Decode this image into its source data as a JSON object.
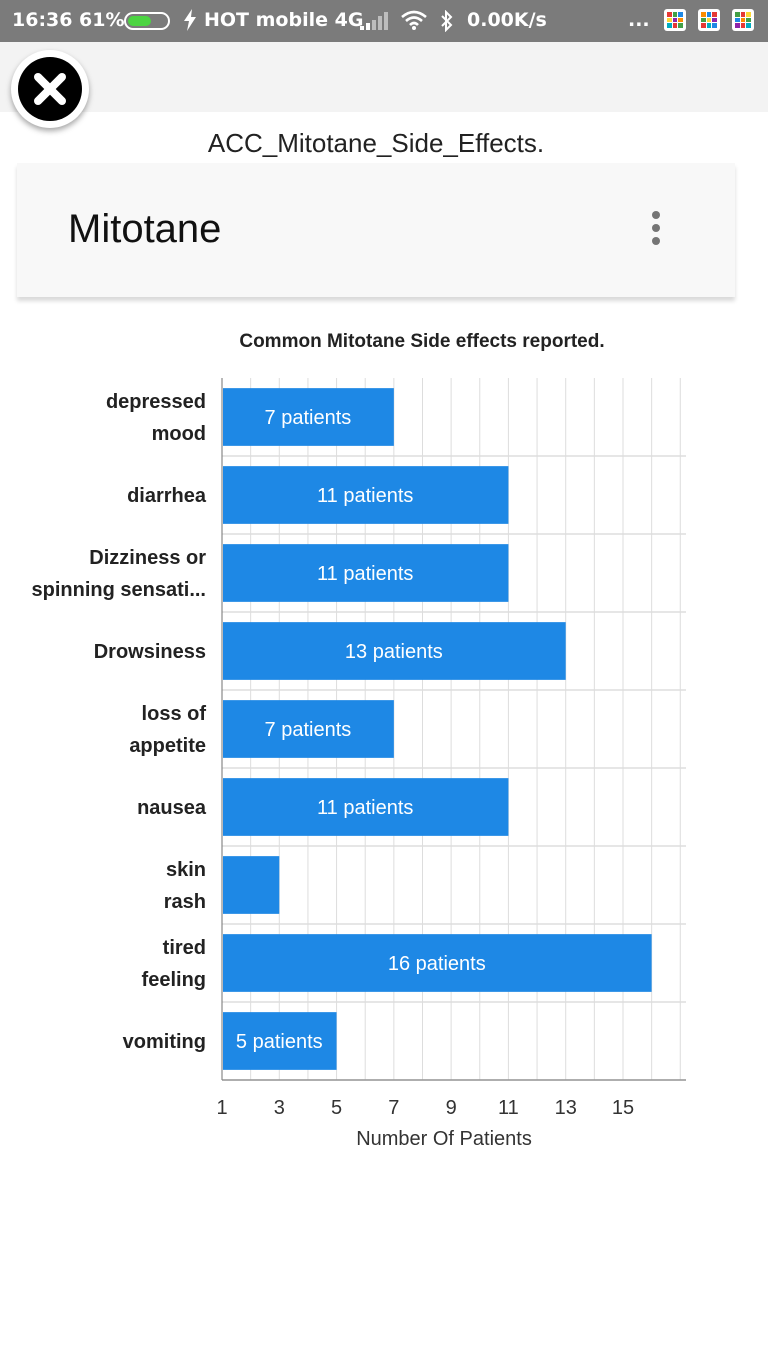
{
  "status_bar": {
    "time": "16:36",
    "battery_pct": "61%",
    "battery_level": 0.61,
    "carrier": "HOT mobile 4G",
    "net_speed": "0.00K/s",
    "overflow": "..."
  },
  "document": {
    "title": "ACC_Mitotane_Side_Effects."
  },
  "card": {
    "title": "Mitotane"
  },
  "icons": {
    "close": "close-icon",
    "more": "more-vert-icon",
    "charging": "bolt-icon",
    "signal": "signal-icon",
    "wifi": "wifi-icon",
    "bluetooth": "bluetooth-icon"
  },
  "colors": {
    "bar": "#1e88e5",
    "bar_label": "#ffffff",
    "grid": "#dddddd",
    "statusbar": "#7b7b7b"
  },
  "chart_data": {
    "type": "bar",
    "orientation": "horizontal",
    "title": "Common Mitotane Side effects reported.",
    "xlabel": "Number Of Patients",
    "ylabel": "",
    "categories": [
      [
        "depressed",
        "mood"
      ],
      [
        "diarrhea"
      ],
      [
        "Dizziness or",
        "spinning sensati..."
      ],
      [
        "Drowsiness"
      ],
      [
        "loss of",
        "appetite"
      ],
      [
        "nausea"
      ],
      [
        "skin",
        "rash"
      ],
      [
        "tired",
        "feeling"
      ],
      [
        "vomiting"
      ]
    ],
    "values": [
      7,
      11,
      11,
      13,
      7,
      11,
      3,
      16,
      5
    ],
    "data_labels": [
      "7 patients",
      "11 patients",
      "11 patients",
      "13 patients",
      "7 patients",
      "11 patients",
      "",
      "16 patients",
      "5 patients"
    ],
    "xlim": [
      1,
      17.2
    ],
    "xticks": [
      1,
      3,
      5,
      7,
      9,
      11,
      13,
      15
    ],
    "minor_grid_step": 1,
    "grid": true
  }
}
